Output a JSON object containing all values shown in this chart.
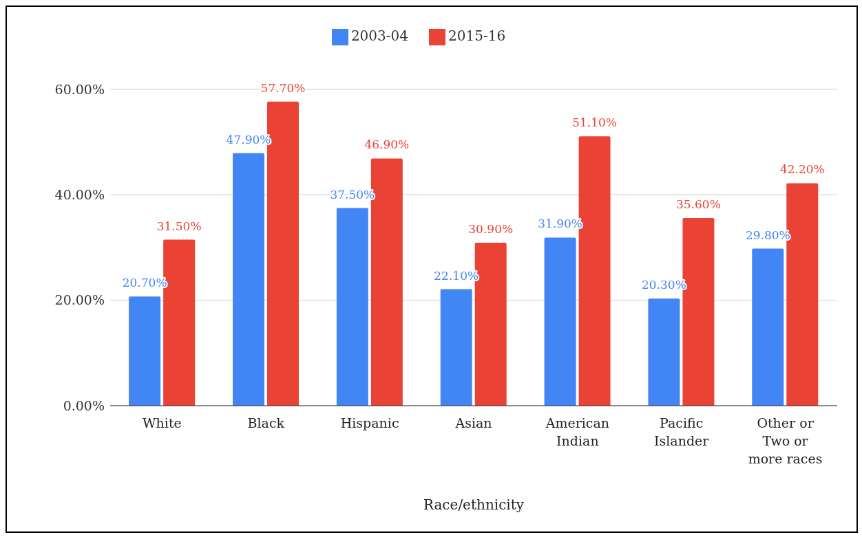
{
  "chart_data": {
    "type": "bar",
    "xlabel": "Race/ethnicity",
    "categories": [
      "White",
      "Black",
      "Hispanic",
      "Asian",
      "American Indian",
      "Pacific Islander",
      "Other or Two or more races"
    ],
    "series": [
      {
        "name": "2003-04",
        "color": "#4285f4",
        "values": [
          20.7,
          47.9,
          37.5,
          22.1,
          31.9,
          20.3,
          29.8
        ],
        "value_labels": [
          "20.70%",
          "47.90%",
          "37.50%",
          "22.10%",
          "31.90%",
          "20.30%",
          "29.80%"
        ]
      },
      {
        "name": "2015-16",
        "color": "#ea4335",
        "values": [
          31.5,
          57.7,
          46.9,
          30.9,
          51.1,
          35.6,
          42.2
        ],
        "value_labels": [
          "31.50%",
          "57.70%",
          "46.90%",
          "30.90%",
          "51.10%",
          "35.60%",
          "42.20%"
        ]
      }
    ],
    "ylim": [
      0,
      60
    ],
    "yticks": [
      {
        "value": 0,
        "label": "0.00%"
      },
      {
        "value": 20,
        "label": "20.00%"
      },
      {
        "value": 40,
        "label": "40.00%"
      },
      {
        "value": 60,
        "label": "60.00%"
      }
    ],
    "grid": "y",
    "legend": "top"
  }
}
